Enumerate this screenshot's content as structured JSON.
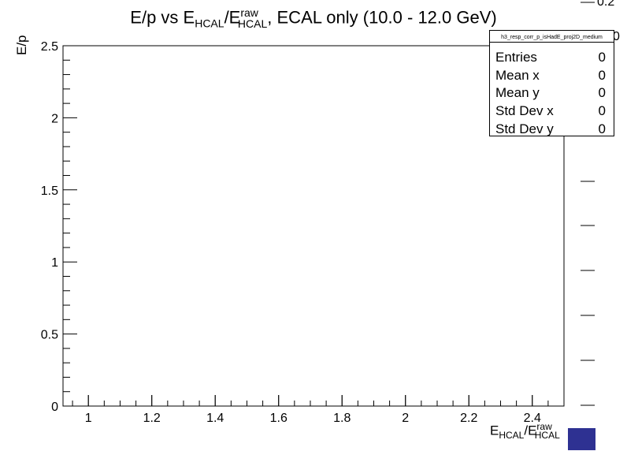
{
  "chart_data": {
    "type": "heatmap",
    "title_main": "E/p vs E",
    "title_sub1": "HCAL",
    "title_mid": "/E",
    "title_sup": "raw",
    "title_sub2": "HCAL",
    "title_tail": ", ECAL only (10.0 - 12.0 GeV)",
    "ylabel": "E/p",
    "xlabel_main": "E",
    "xlabel_sub1": "HCAL",
    "xlabel_mid": "/E",
    "xlabel_sup": "raw",
    "xlabel_sub2": "HCAL",
    "xlim": [
      0.92,
      2.5
    ],
    "ylim": [
      0,
      2.5
    ],
    "x_ticks": [
      "1",
      "1.2",
      "1.4",
      "1.6",
      "1.8",
      "2",
      "2.2",
      "2.4"
    ],
    "x_tick_values": [
      1,
      1.2,
      1.4,
      1.6,
      1.8,
      2.0,
      2.2,
      2.4
    ],
    "y_ticks": [
      "0",
      "0.5",
      "1",
      "1.5",
      "2",
      "2.5"
    ],
    "y_tick_values": [
      0,
      0.5,
      1,
      1.5,
      2,
      2.5
    ],
    "values": [],
    "palette_label": "0.2",
    "palette_fragment": "0",
    "palette_color": "#2e3192"
  },
  "stats": {
    "name": "h3_resp_corr_p_isHadE_proj2D_medium",
    "rows": [
      {
        "label": "Entries",
        "value": "0"
      },
      {
        "label": "Mean x",
        "value": "0"
      },
      {
        "label": "Mean y",
        "value": "0"
      },
      {
        "label": "Std Dev x",
        "value": "0"
      },
      {
        "label": "Std Dev y",
        "value": "0"
      }
    ]
  }
}
